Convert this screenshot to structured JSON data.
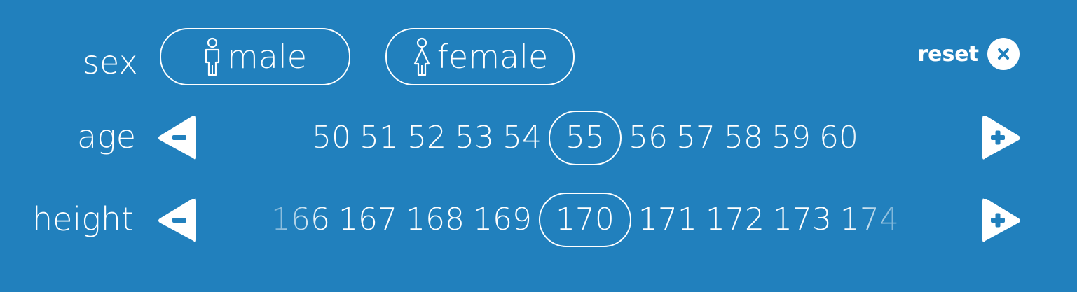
{
  "sex": {
    "label": "sex",
    "options": [
      {
        "label": "male",
        "icon": "male-icon"
      },
      {
        "label": "female",
        "icon": "female-icon"
      }
    ]
  },
  "reset": {
    "label": "reset",
    "icon": "close-icon"
  },
  "age": {
    "label": "age",
    "values": [
      "50",
      "51",
      "52",
      "53",
      "54",
      "55",
      "56",
      "57",
      "58",
      "59",
      "60"
    ],
    "selected": "55",
    "decrement_icon": "minus-arrow-icon",
    "increment_icon": "plus-arrow-icon"
  },
  "height": {
    "label": "height",
    "values": [
      "166",
      "167",
      "168",
      "169",
      "170",
      "171",
      "172",
      "173",
      "174"
    ],
    "selected": "170",
    "decrement_icon": "minus-arrow-icon",
    "increment_icon": "plus-arrow-icon"
  },
  "colors": {
    "background": "#2180bd",
    "foreground": "#ffffff"
  }
}
